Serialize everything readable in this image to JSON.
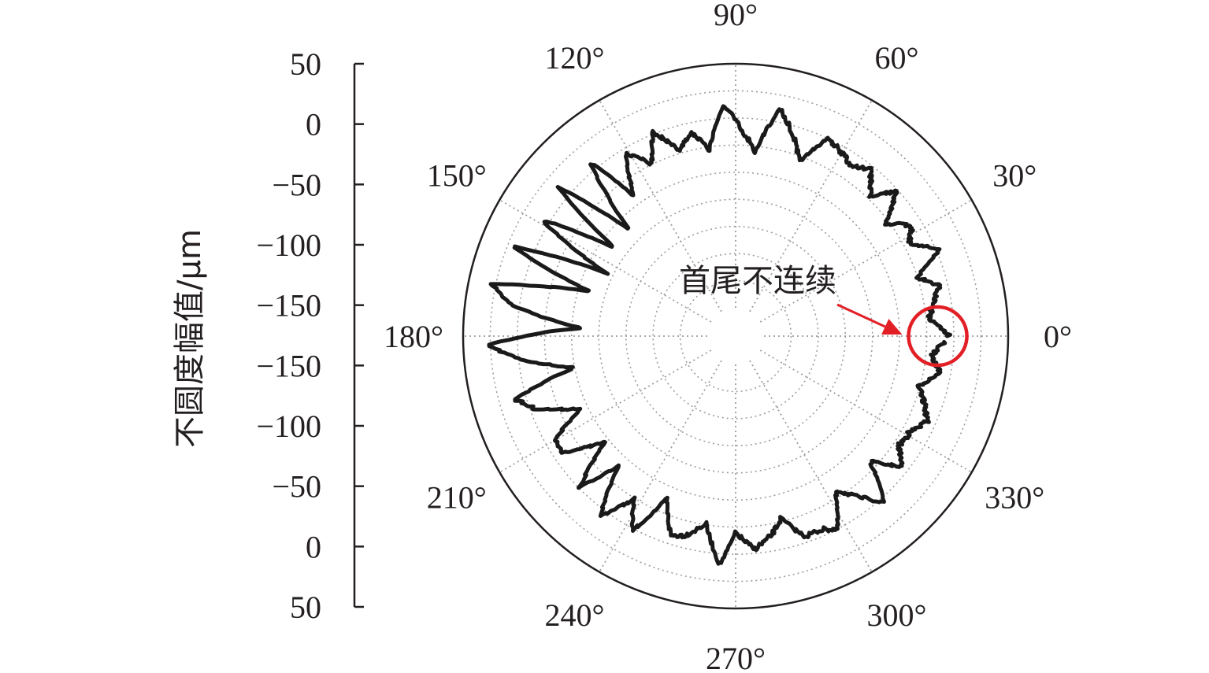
{
  "chart_data": {
    "type": "polar-line",
    "ylabel": "不圆度幅值/μm",
    "r_axis_ticks": [
      "50",
      "0",
      "−50",
      "−100",
      "−150",
      "−150",
      "−100",
      "−50",
      "0",
      "50"
    ],
    "r_axis_values": [
      50,
      0,
      -50,
      -100,
      -150,
      -150,
      -100,
      -50,
      0,
      50
    ],
    "rlim": [
      -175,
      50
    ],
    "angle_labels": [
      "0°",
      "30°",
      "60°",
      "90°",
      "120°",
      "150°",
      "180°",
      "210°",
      "240°",
      "270°",
      "300°",
      "330°"
    ],
    "angle_values_deg": [
      0,
      30,
      60,
      90,
      120,
      150,
      180,
      210,
      240,
      270,
      300,
      330
    ],
    "grid": true,
    "series": [
      {
        "profile_deg": [
          0,
          5,
          9,
          14,
          18,
          23,
          28,
          32,
          37,
          42,
          46,
          51,
          56,
          60,
          65,
          70,
          74,
          79,
          84,
          88,
          93,
          98,
          102,
          107,
          112,
          116,
          121,
          126,
          130,
          135,
          140,
          144,
          149,
          154,
          158,
          163,
          168,
          172,
          177,
          182,
          186,
          191,
          196,
          200,
          205,
          210,
          214,
          219,
          224,
          228,
          233,
          238,
          242,
          247,
          252,
          256,
          261,
          266,
          270,
          275,
          280,
          284,
          289,
          294,
          298,
          303,
          308,
          312,
          317,
          322,
          326,
          331,
          336,
          340,
          345,
          350,
          354,
          359
        ],
        "profile_um": [
          -4,
          -22,
          -18,
          -8,
          -26,
          2,
          -20,
          -10,
          -28,
          -2,
          -22,
          -4,
          -12,
          -6,
          0,
          -30,
          -8,
          12,
          -30,
          -12,
          12,
          -28,
          -10,
          -22,
          2,
          -25,
          -4,
          -42,
          8,
          -62,
          12,
          -64,
          8,
          -68,
          20,
          -62,
          28,
          8,
          -58,
          28,
          0,
          -50,
          10,
          -5,
          -44,
          -8,
          -10,
          -46,
          -2,
          -40,
          6,
          -24,
          2,
          -38,
          -8,
          -12,
          -26,
          10,
          -20,
          -4,
          -14,
          -28,
          -6,
          -6,
          0,
          -32,
          -12,
          4,
          -32,
          -6,
          -20,
          -18,
          -8,
          -16,
          -26,
          -10,
          -20,
          -8
        ]
      }
    ],
    "annotation": {
      "text": "首尾不连续",
      "marker": "circle",
      "marker_angle_deg": 0,
      "marker_value_um": -20,
      "color": "#e31f26"
    },
    "colors": {
      "series": "#1a1a1a",
      "grid": "#9d9d9d",
      "frame": "#231f20",
      "highlight": "#e31f26"
    }
  }
}
